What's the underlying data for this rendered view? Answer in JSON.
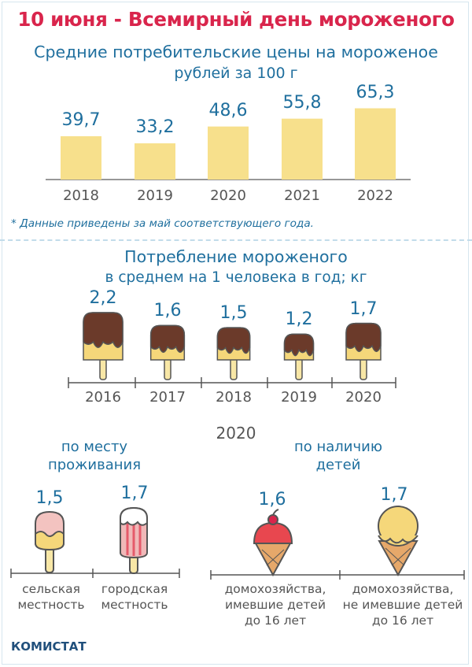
{
  "title": "10 июня - Всемирный день мороженого",
  "price_chart": {
    "title": "Средние потребительские цены на мороженое",
    "subtitle": "рублей за 100 г",
    "note": "* Данные приведены за май соответствующего года."
  },
  "consumption_chart": {
    "title": "Потребление мороженого",
    "subtitle": "в среднем на 1 человека в год; кг"
  },
  "breakdown": {
    "year": "2020",
    "by_residence": {
      "heading_line1": "по месту",
      "heading_line2": "проживания",
      "items": [
        {
          "value": "1,5",
          "caption_line1": "сельская",
          "caption_line2": "местность"
        },
        {
          "value": "1,7",
          "caption_line1": "городская",
          "caption_line2": "местность"
        }
      ]
    },
    "by_children": {
      "heading_line1": "по наличию",
      "heading_line2": "детей",
      "items": [
        {
          "value": "1,6",
          "caption_line1": "домохозяйства,",
          "caption_line2": "имевшие детей",
          "caption_line3": "до 16 лет"
        },
        {
          "value": "1,7",
          "caption_line1": "домохозяйства,",
          "caption_line2": "не имевшие детей",
          "caption_line3": "до 16 лет"
        }
      ]
    }
  },
  "source": "КОМИСТАТ",
  "colors": {
    "title_red": "#d9254c",
    "blue": "#1f6f9e",
    "bar_yellow": "#f7e08c",
    "chocolate": "#6b3a2a",
    "ice_cream_body": "#f5d77a",
    "stick": "#f8e7a6"
  },
  "chart_data": [
    {
      "type": "bar",
      "title": "Средние потребительские цены на мороженое",
      "subtitle": "рублей за 100 г",
      "categories": [
        "2018",
        "2019",
        "2020",
        "2021",
        "2022"
      ],
      "values": [
        39.7,
        33.2,
        48.6,
        55.8,
        65.3
      ],
      "value_labels": [
        "39,7",
        "33,2",
        "48,6",
        "55,8",
        "65,3"
      ],
      "ylabel": "",
      "ylim": [
        0,
        70
      ],
      "grid": false,
      "legend": "none"
    },
    {
      "type": "bar",
      "title": "Потребление мороженого",
      "subtitle": "в среднем на 1 человека в год; кг",
      "categories": [
        "2016",
        "2017",
        "2018",
        "2019",
        "2020"
      ],
      "values": [
        2.2,
        1.6,
        1.5,
        1.2,
        1.7
      ],
      "value_labels": [
        "2,2",
        "1,6",
        "1,5",
        "1,2",
        "1,7"
      ],
      "ylabel": "",
      "ylim": [
        0,
        2.2
      ],
      "grid": false,
      "legend": "none"
    }
  ]
}
